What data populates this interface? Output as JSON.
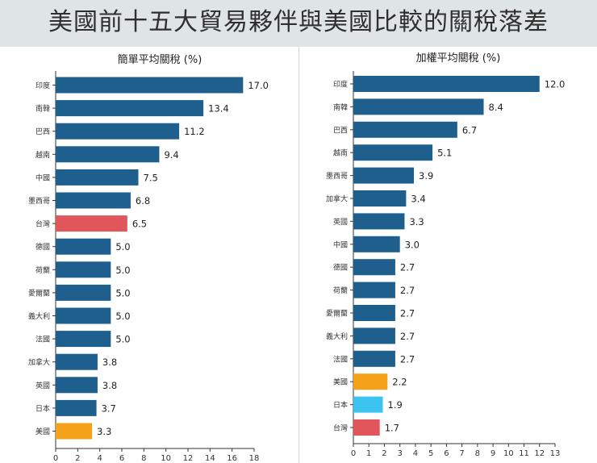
{
  "title": "美國前十五大貿易夥伴與美國比較的關稅落差",
  "colors": {
    "bar_default": "#1e5f8e",
    "taiwan": "#e0565b",
    "usa": "#f5a11a",
    "japan_weighted": "#3cc3f0",
    "title_bg": "#dfe5e5"
  },
  "chart_data": [
    {
      "type": "bar",
      "orientation": "horizontal",
      "title": "簡單平均關稅 (%)",
      "categories": [
        "印度",
        "南韓",
        "巴西",
        "越南",
        "中國",
        "墨西哥",
        "台灣",
        "德國",
        "荷蘭",
        "愛爾蘭",
        "義大利",
        "法國",
        "加拿大",
        "英國",
        "日本",
        "美國"
      ],
      "values": [
        17.0,
        13.4,
        11.2,
        9.4,
        7.5,
        6.8,
        6.5,
        5.0,
        5.0,
        5.0,
        5.0,
        5.0,
        3.8,
        3.8,
        3.7,
        3.3
      ],
      "value_labels": [
        "17.0",
        "13.4",
        "11.2",
        "9.4",
        "7.5",
        "6.8",
        "6.5",
        "5.0",
        "5.0",
        "5.0",
        "5.0",
        "5.0",
        "3.8",
        "3.8",
        "3.7",
        "3.3"
      ],
      "highlight": {
        "台灣": "taiwan",
        "美國": "usa"
      },
      "xlim": [
        0,
        18
      ],
      "xticks": [
        0,
        2,
        4,
        6,
        8,
        10,
        12,
        14,
        16,
        18
      ]
    },
    {
      "type": "bar",
      "orientation": "horizontal",
      "title": "加權平均關稅 (%)",
      "categories": [
        "印度",
        "南韓",
        "巴西",
        "越南",
        "墨西哥",
        "加拿大",
        "英國",
        "中國",
        "德國",
        "荷蘭",
        "愛爾蘭",
        "義大利",
        "法國",
        "美國",
        "日本",
        "台灣"
      ],
      "values": [
        12.0,
        8.4,
        6.7,
        5.1,
        3.9,
        3.4,
        3.3,
        3.0,
        2.7,
        2.7,
        2.7,
        2.7,
        2.7,
        2.2,
        1.9,
        1.7
      ],
      "value_labels": [
        "12.0",
        "8.4",
        "6.7",
        "5.1",
        "3.9",
        "3.4",
        "3.3",
        "3.0",
        "2.7",
        "2.7",
        "2.7",
        "2.7",
        "2.7",
        "2.2",
        "1.9",
        "1.7"
      ],
      "highlight": {
        "美國": "usa",
        "日本": "japan_weighted",
        "台灣": "taiwan"
      },
      "xlim": [
        0,
        13
      ],
      "xticks": [
        0,
        1,
        2,
        3,
        4,
        5,
        6,
        7,
        8,
        9,
        10,
        11,
        12,
        13
      ]
    }
  ]
}
